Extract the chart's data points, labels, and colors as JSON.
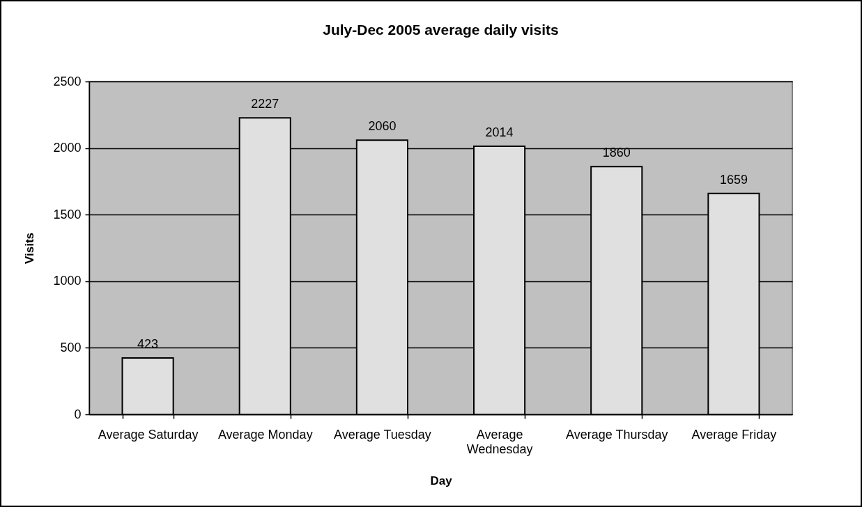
{
  "chart_data": {
    "type": "bar",
    "title": "July-Dec 2005 average daily visits",
    "xlabel": "Day",
    "ylabel": "Visits",
    "categories": [
      "Average Saturday",
      "Average Monday",
      "Average Tuesday",
      "Average Wednesday",
      "Average Thursday",
      "Average Friday"
    ],
    "values": [
      423,
      2227,
      2060,
      2014,
      1860,
      1659
    ],
    "color": "#e0e0e0",
    "ylim": [
      0,
      2500
    ],
    "yticks": [
      0,
      500,
      1000,
      1500,
      2000,
      2500
    ],
    "grid": "y",
    "data_labels": true
  }
}
